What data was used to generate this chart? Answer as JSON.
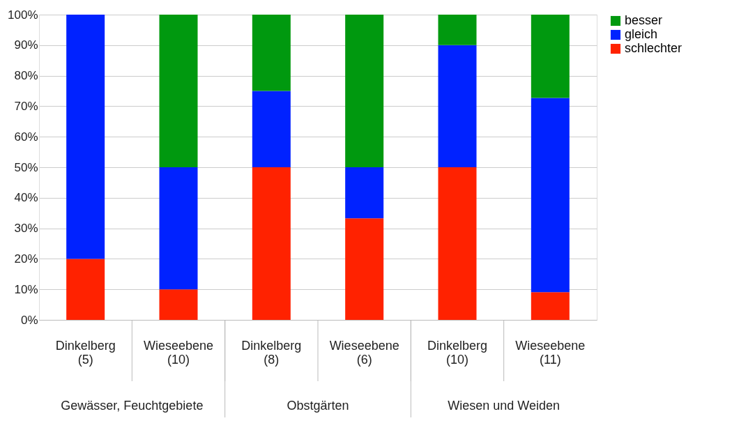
{
  "chart_data": {
    "type": "bar",
    "stacked": true,
    "categories": [
      "Dinkelberg (5)",
      "Wieseebene (10)",
      "Dinkelberg (8)",
      "Wieseebene (6)",
      "Dinkelberg (10)",
      "Wieseebene (11)"
    ],
    "series": [
      {
        "name": "schlechter",
        "color": "#ff2200",
        "values": [
          20,
          10,
          50,
          33.3,
          50,
          9.1
        ]
      },
      {
        "name": "gleich",
        "color": "#0022ff",
        "values": [
          80,
          40,
          25,
          16.7,
          40,
          63.6
        ]
      },
      {
        "name": "besser",
        "color": "#00990f",
        "values": [
          0,
          50,
          25,
          50,
          10,
          27.3
        ]
      }
    ],
    "ylim": [
      0,
      100
    ],
    "yticks": [
      {
        "value": 0,
        "label": "0%"
      },
      {
        "value": 10,
        "label": "10%"
      },
      {
        "value": 20,
        "label": "20%"
      },
      {
        "value": 30,
        "label": "30%"
      },
      {
        "value": 40,
        "label": "40%"
      },
      {
        "value": 50,
        "label": "50%"
      },
      {
        "value": 60,
        "label": "60%"
      },
      {
        "value": 70,
        "label": "70%"
      },
      {
        "value": 80,
        "label": "80%"
      },
      {
        "value": 90,
        "label": "90%"
      },
      {
        "value": 100,
        "label": "100%"
      }
    ],
    "annotations": [
      "Gewässer, Feuchtgebiete",
      "Obstgärten",
      "Wiesen und Weiden"
    ],
    "grid": "y",
    "legend": "right"
  }
}
